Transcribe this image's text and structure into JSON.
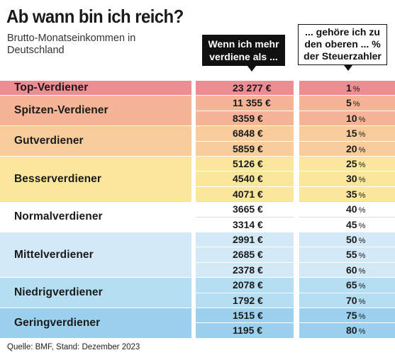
{
  "title": "Ab wann bin ich reich?",
  "subtitle": "Brutto-Monatseinkommen in Deutschland",
  "header_left": "Wenn ich mehr verdiene als ...",
  "header_right": "... gehöre ich zu den oberen ... % der Steuerzahler",
  "source": "Quelle: BMF, Stand: Dezember 2023",
  "chart_data": {
    "type": "table",
    "columns": [
      "Wenn ich mehr verdiene als ...",
      "... gehöre ich zu den oberen ... % der Steuerzahler"
    ],
    "categories": [
      {
        "label": "Top-Verdiener",
        "rows": 1,
        "color": "#ee8c93"
      },
      {
        "label": "Spitzen-Verdiener",
        "rows": 2,
        "color": "#f6b497"
      },
      {
        "label": "Gutverdiener",
        "rows": 2,
        "color": "#f9cd9b"
      },
      {
        "label": "Besserverdiener",
        "rows": 3,
        "color": "#fbe79c"
      },
      {
        "label": "Normalverdiener",
        "rows": 2,
        "color": "#ffffff"
      },
      {
        "label": "Mittelverdiener",
        "rows": 3,
        "color": "#d3e9f7"
      },
      {
        "label": "Niedrigverdiener",
        "rows": 2,
        "color": "#b5def2"
      },
      {
        "label": "Geringverdiener",
        "rows": 2,
        "color": "#9bd1ee"
      }
    ],
    "rows": [
      {
        "income": "23 277 €",
        "percent": "1",
        "unit": "%"
      },
      {
        "income": "11 355 €",
        "percent": "5",
        "unit": "%"
      },
      {
        "income": "8359 €",
        "percent": "10",
        "unit": "%"
      },
      {
        "income": "6848 €",
        "percent": "15",
        "unit": "%"
      },
      {
        "income": "5859 €",
        "percent": "20",
        "unit": "%"
      },
      {
        "income": "5126 €",
        "percent": "25",
        "unit": "%"
      },
      {
        "income": "4540 €",
        "percent": "30",
        "unit": "%"
      },
      {
        "income": "4071 €",
        "percent": "35",
        "unit": "%"
      },
      {
        "income": "3665 €",
        "percent": "40",
        "unit": "%"
      },
      {
        "income": "3314 €",
        "percent": "45",
        "unit": "%"
      },
      {
        "income": "2991 €",
        "percent": "50",
        "unit": "%"
      },
      {
        "income": "2685 €",
        "percent": "55",
        "unit": "%"
      },
      {
        "income": "2378 €",
        "percent": "60",
        "unit": "%"
      },
      {
        "income": "2078 €",
        "percent": "65",
        "unit": "%"
      },
      {
        "income": "1792 €",
        "percent": "70",
        "unit": "%"
      },
      {
        "income": "1515 €",
        "percent": "75",
        "unit": "%"
      },
      {
        "income": "1195 €",
        "percent": "80",
        "unit": "%"
      }
    ]
  }
}
